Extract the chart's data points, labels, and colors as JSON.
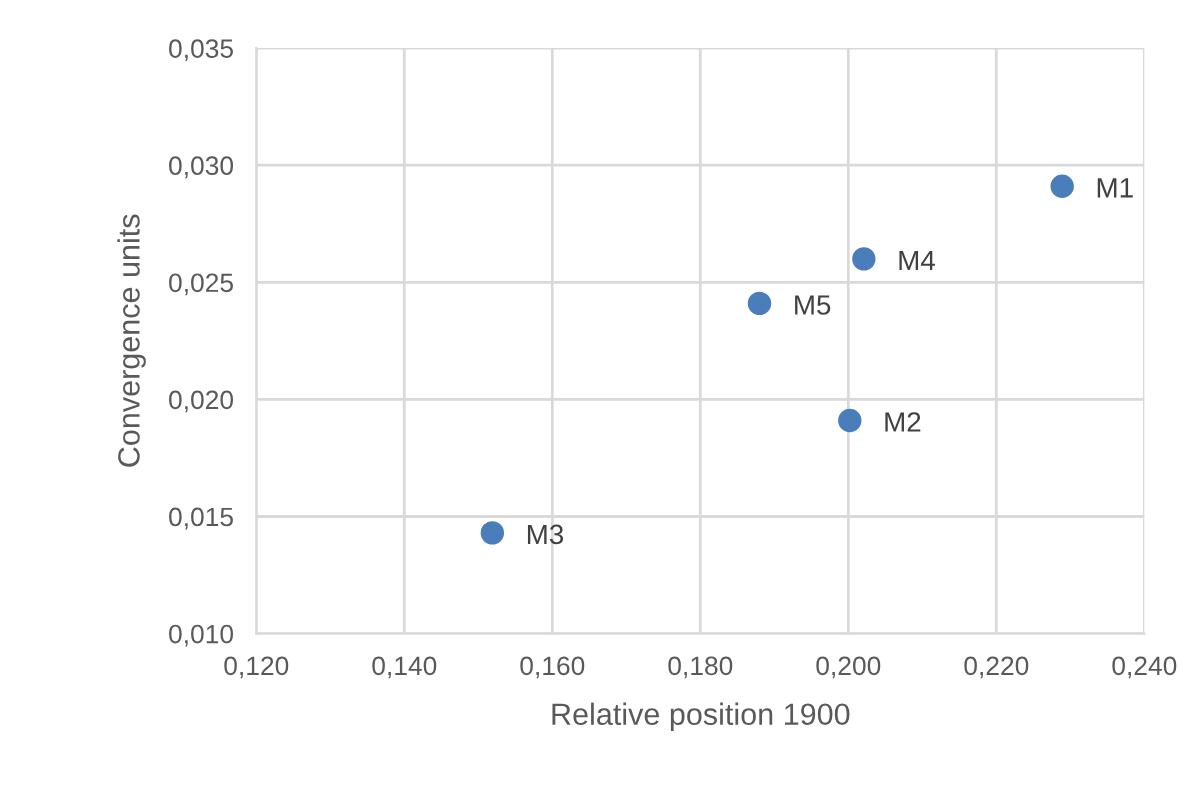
{
  "chart_data": {
    "type": "scatter",
    "xlabel": "Relative position 1900",
    "ylabel": "Convergence units",
    "x": [
      0.2289,
      0.2002,
      0.1519,
      0.2021,
      0.188
    ],
    "series": [
      {
        "color": "#4a7ebb",
        "values": [
          0.0291,
          0.0191,
          0.0143,
          0.026,
          0.0241
        ]
      }
    ],
    "annotations": [
      {
        "text": "M1",
        "x": 0.2289,
        "y": 0.0291
      },
      {
        "text": "M2",
        "x": 0.2002,
        "y": 0.0191
      },
      {
        "text": "M3",
        "x": 0.1519,
        "y": 0.0143
      },
      {
        "text": "M4",
        "x": 0.2021,
        "y": 0.026
      },
      {
        "text": "M5",
        "x": 0.188,
        "y": 0.0241
      }
    ],
    "xlim": [
      0.12,
      0.24
    ],
    "ylim": [
      0.01,
      0.035
    ],
    "xticks": [
      {
        "value": 0.12,
        "label": "0,120"
      },
      {
        "value": 0.14,
        "label": "0,140"
      },
      {
        "value": 0.16,
        "label": "0,160"
      },
      {
        "value": 0.18,
        "label": "0,180"
      },
      {
        "value": 0.2,
        "label": "0,200"
      },
      {
        "value": 0.22,
        "label": "0,220"
      },
      {
        "value": 0.24,
        "label": "0,240"
      }
    ],
    "yticks": [
      {
        "value": 0.01,
        "label": "0,010"
      },
      {
        "value": 0.015,
        "label": "0,015"
      },
      {
        "value": 0.02,
        "label": "0,020"
      },
      {
        "value": 0.025,
        "label": "0,025"
      },
      {
        "value": 0.03,
        "label": "0,030"
      },
      {
        "value": 0.035,
        "label": "0,035"
      }
    ],
    "grid": true,
    "marker": "circle",
    "legend": false
  }
}
